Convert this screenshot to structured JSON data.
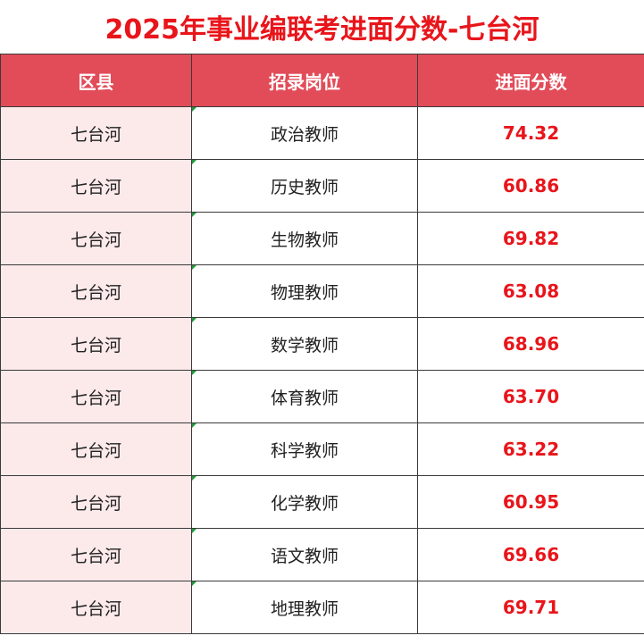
{
  "title": "2025年事业编联考进面分数-七台河",
  "colors": {
    "title": "#e8151b",
    "header_bg": "#e24c59",
    "header_text": "#ffffff",
    "district_bg": "#fce9ea",
    "score_text": "#e8151b"
  },
  "table": {
    "headers": [
      "区县",
      "招录岗位",
      "进面分数"
    ],
    "rows": [
      {
        "district": "七台河",
        "post": "政治教师",
        "score": "74.32"
      },
      {
        "district": "七台河",
        "post": "历史教师",
        "score": "60.86"
      },
      {
        "district": "七台河",
        "post": "生物教师",
        "score": "69.82"
      },
      {
        "district": "七台河",
        "post": "物理教师",
        "score": "63.08"
      },
      {
        "district": "七台河",
        "post": "数学教师",
        "score": "68.96"
      },
      {
        "district": "七台河",
        "post": "体育教师",
        "score": "63.70"
      },
      {
        "district": "七台河",
        "post": "科学教师",
        "score": "63.22"
      },
      {
        "district": "七台河",
        "post": "化学教师",
        "score": "60.95"
      },
      {
        "district": "七台河",
        "post": "语文教师",
        "score": "69.66"
      },
      {
        "district": "七台河",
        "post": "地理教师",
        "score": "69.71"
      }
    ]
  }
}
